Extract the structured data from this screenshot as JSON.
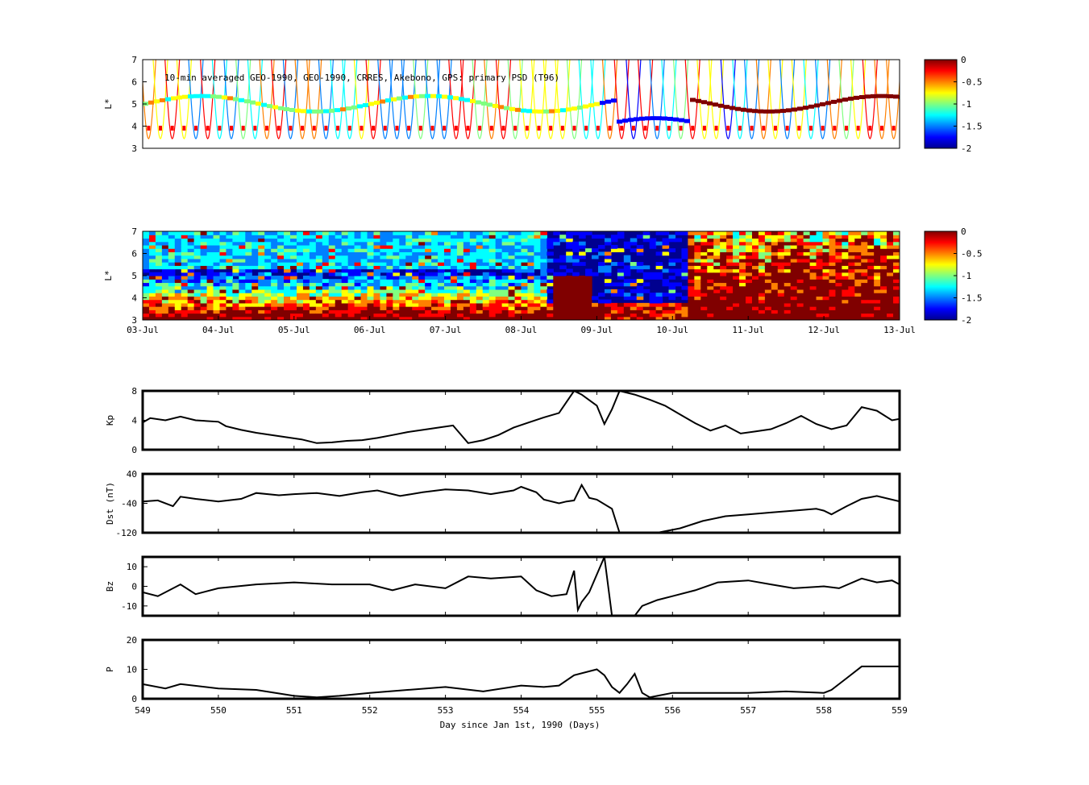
{
  "colormap": [
    "#00008f",
    "#0000ff",
    "#0080ff",
    "#00ffff",
    "#80ff80",
    "#ffff00",
    "#ff8000",
    "#ff0000",
    "#800000"
  ],
  "chart_data": [
    {
      "id": "psd-observations",
      "type": "heatmap",
      "title": "10-min averaged GEO-1990, GEO-1990, CRRES, Akebono, GPS: primary PSD (T96)",
      "ylabel": "L*",
      "ylim": [
        3,
        7
      ],
      "yticks": [
        "3",
        "4",
        "5",
        "6",
        "7"
      ],
      "colorbar": {
        "range": [
          -2,
          0
        ],
        "ticks": [
          "0",
          "-0.5",
          "-1",
          "-1.5",
          "-2"
        ]
      }
    },
    {
      "id": "psd-reanalysis",
      "type": "heatmap",
      "ylabel": "L*",
      "ylim": [
        3,
        7
      ],
      "yticks": [
        "3",
        "4",
        "5",
        "6",
        "7"
      ],
      "xticks": [
        "03-Jul",
        "04-Jul",
        "05-Jul",
        "06-Jul",
        "07-Jul",
        "08-Jul",
        "09-Jul",
        "10-Jul",
        "11-Jul",
        "12-Jul",
        "13-Jul"
      ],
      "colorbar": {
        "range": [
          -2,
          0
        ],
        "ticks": [
          "0",
          "-0.5",
          "-1",
          "-1.5",
          "-2"
        ]
      }
    },
    {
      "id": "kp",
      "type": "line",
      "ylabel": "Kp",
      "xlim": [
        549,
        559
      ],
      "ylim": [
        0,
        8
      ],
      "yticks": [
        "0",
        "4",
        "8"
      ],
      "series": [
        {
          "x": [
            549.0,
            549.1,
            549.3,
            549.5,
            549.7,
            550.0,
            550.1,
            550.3,
            550.5,
            550.7,
            550.9,
            551.1,
            551.3,
            551.5,
            551.7,
            551.9,
            552.1,
            552.3,
            552.5,
            552.7,
            552.9,
            553.1,
            553.3,
            553.5,
            553.7,
            553.9,
            554.1,
            554.3,
            554.5,
            554.7,
            554.8,
            555.0,
            555.1,
            555.2,
            555.3,
            555.5,
            555.7,
            555.9,
            556.1,
            556.3,
            556.5,
            556.7,
            556.9,
            557.1,
            557.3,
            557.5,
            557.7,
            557.9,
            558.1,
            558.3,
            558.5,
            558.7,
            558.9,
            559.0
          ],
          "y": [
            3.7,
            4.3,
            4.0,
            4.5,
            4.0,
            3.8,
            3.2,
            2.7,
            2.3,
            2.0,
            1.7,
            1.4,
            0.9,
            1.0,
            1.2,
            1.3,
            1.6,
            2.0,
            2.4,
            2.7,
            3.0,
            3.3,
            0.9,
            1.3,
            2.0,
            3.0,
            3.7,
            4.4,
            5.0,
            8.0,
            7.5,
            6.0,
            3.5,
            5.5,
            8.0,
            7.5,
            6.8,
            6.0,
            4.8,
            3.6,
            2.6,
            3.3,
            2.2,
            2.5,
            2.8,
            3.6,
            4.6,
            3.5,
            2.8,
            3.3,
            5.8,
            5.3,
            4.0,
            4.2
          ]
        }
      ]
    },
    {
      "id": "dst",
      "type": "line",
      "ylabel": "Dst (nT)",
      "xlim": [
        549,
        559
      ],
      "ylim": [
        -120,
        40
      ],
      "yticks": [
        "-120",
        "-40",
        "40"
      ],
      "series": [
        {
          "x": [
            549.0,
            549.2,
            549.4,
            549.5,
            549.7,
            550.0,
            550.3,
            550.5,
            550.8,
            551.0,
            551.3,
            551.6,
            551.9,
            552.1,
            552.4,
            552.7,
            553.0,
            553.3,
            553.6,
            553.9,
            554.0,
            554.2,
            554.3,
            554.5,
            554.6,
            554.7,
            554.8,
            554.9,
            555.0,
            555.2,
            555.3,
            555.6,
            555.8,
            556.1,
            556.4,
            556.7,
            557.0,
            557.3,
            557.6,
            557.9,
            558.0,
            558.1,
            558.3,
            558.5,
            558.7,
            559.0
          ],
          "y": [
            -35,
            -32,
            -48,
            -22,
            -28,
            -35,
            -28,
            -12,
            -18,
            -15,
            -12,
            -20,
            -10,
            -5,
            -20,
            -10,
            -2,
            -5,
            -15,
            -5,
            5,
            -10,
            -30,
            -40,
            -35,
            -32,
            10,
            -25,
            -30,
            -55,
            -120,
            -120,
            -120,
            -108,
            -88,
            -75,
            -70,
            -65,
            -60,
            -55,
            -60,
            -70,
            -48,
            -28,
            -20,
            -35
          ]
        }
      ]
    },
    {
      "id": "bz",
      "type": "line",
      "ylabel": "Bz",
      "xlim": [
        549,
        559
      ],
      "ylim": [
        -15,
        15
      ],
      "yticks": [
        "-10",
        "0",
        "10"
      ],
      "series": [
        {
          "x": [
            549.0,
            549.2,
            549.5,
            549.7,
            550.0,
            550.5,
            551.0,
            551.5,
            552.0,
            552.3,
            552.6,
            553.0,
            553.3,
            553.6,
            554.0,
            554.2,
            554.4,
            554.6,
            554.7,
            554.75,
            554.8,
            554.9,
            555.1,
            555.2,
            555.3,
            555.5,
            555.6,
            555.8,
            556.0,
            556.3,
            556.6,
            557.0,
            557.3,
            557.6,
            558.0,
            558.2,
            558.5,
            558.7,
            558.9,
            559.0
          ],
          "y": [
            -3,
            -5,
            1,
            -4,
            -1,
            1,
            2,
            1,
            1,
            -2,
            1,
            -1,
            5,
            4,
            5,
            -2,
            -5,
            -4,
            8,
            -12,
            -8,
            -3,
            15,
            -15,
            -15,
            -15,
            -10,
            -7,
            -5,
            -2,
            2,
            3,
            1,
            -1,
            0,
            -1,
            4,
            2,
            3,
            1
          ]
        }
      ]
    },
    {
      "id": "p",
      "type": "line",
      "ylabel": "P",
      "xlabel": "Day since Jan 1st, 1990 (Days)",
      "xlim": [
        549,
        559
      ],
      "ylim": [
        0,
        20
      ],
      "yticks": [
        "0",
        "10",
        "20"
      ],
      "xticks": [
        "549",
        "550",
        "551",
        "552",
        "553",
        "554",
        "555",
        "556",
        "557",
        "558",
        "559"
      ],
      "series": [
        {
          "x": [
            549.0,
            549.3,
            549.5,
            550.0,
            550.5,
            551.0,
            551.3,
            551.6,
            552.0,
            552.5,
            553.0,
            553.5,
            554.0,
            554.3,
            554.5,
            554.7,
            555.0,
            555.1,
            555.2,
            555.3,
            555.4,
            555.5,
            555.6,
            555.7,
            555.8,
            556.0,
            556.5,
            557.0,
            557.5,
            558.0,
            558.1,
            558.3,
            558.5,
            559.0
          ],
          "y": [
            5,
            3.5,
            5,
            3.5,
            3,
            1,
            0.5,
            1,
            2,
            3,
            4,
            2.5,
            4.5,
            4,
            4.5,
            8,
            10,
            8,
            4,
            2,
            5,
            8.5,
            2,
            0.5,
            1,
            2,
            2,
            2,
            2.5,
            2,
            3,
            7,
            11,
            11
          ]
        }
      ]
    }
  ]
}
